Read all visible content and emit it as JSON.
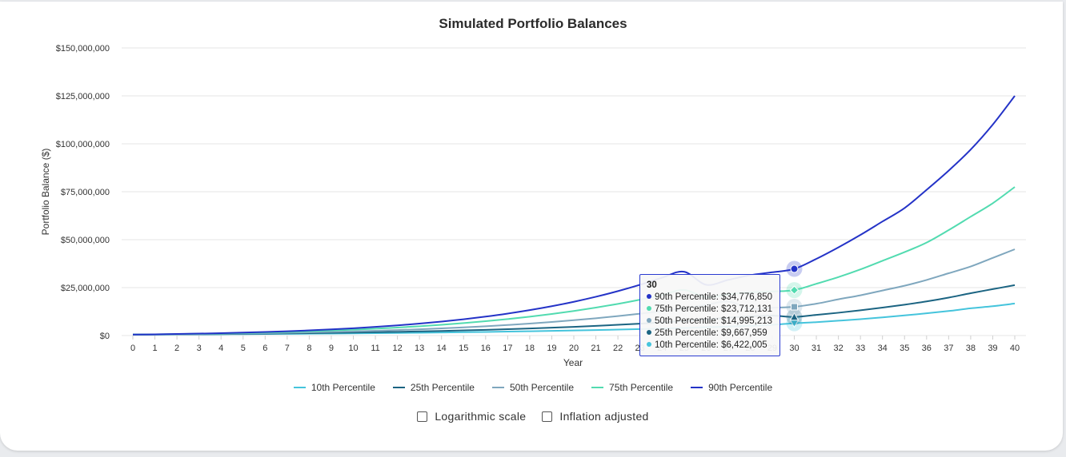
{
  "chart_data": {
    "type": "line",
    "title": "Simulated Portfolio Balances",
    "xlabel": "Year",
    "ylabel": "Portfolio Balance ($)",
    "x": [
      0,
      1,
      2,
      3,
      4,
      5,
      6,
      7,
      8,
      9,
      10,
      11,
      12,
      13,
      14,
      15,
      16,
      17,
      18,
      19,
      20,
      21,
      22,
      23,
      24,
      25,
      26,
      27,
      28,
      29,
      30,
      31,
      32,
      33,
      34,
      35,
      36,
      37,
      38,
      39,
      40
    ],
    "y_ticks": [
      "$0",
      "$25,000,000",
      "$50,000,000",
      "$75,000,000",
      "$100,000,000",
      "$125,000,000",
      "$150,000,000"
    ],
    "ylim": [
      0,
      150000000
    ],
    "grid": true,
    "legend_position": "bottom",
    "series": [
      {
        "name": "10th Percentile",
        "color": "#45c4dc",
        "values": [
          500000,
          520000,
          560000,
          610000,
          670000,
          740000,
          810000,
          890000,
          970000,
          1060000,
          1150000,
          1250000,
          1360000,
          1480000,
          1610000,
          1750000,
          1900000,
          2060000,
          2240000,
          2430000,
          2640000,
          2870000,
          3110000,
          3380000,
          3660000,
          3970000,
          4310000,
          4680000,
          5090000,
          5600000,
          6422005,
          7000000,
          7750000,
          8550000,
          9500000,
          10500000,
          11600000,
          12800000,
          14200000,
          15300000,
          16700000
        ]
      },
      {
        "name": "25th Percentile",
        "color": "#1b6482",
        "values": [
          500000,
          560000,
          630000,
          710000,
          800000,
          900000,
          1010000,
          1130000,
          1260000,
          1410000,
          1570000,
          1750000,
          1950000,
          2170000,
          2420000,
          2690000,
          2990000,
          3320000,
          3690000,
          4100000,
          4550000,
          5050000,
          5600000,
          6210000,
          6880000,
          7620000,
          8440000,
          9340000,
          10000000,
          10400000,
          9667959,
          10800000,
          11900000,
          13200000,
          14600000,
          16100000,
          17800000,
          19800000,
          22100000,
          24200000,
          26300000
        ]
      },
      {
        "name": "50th Percentile",
        "color": "#7fa7be",
        "values": [
          500000,
          590000,
          690000,
          800000,
          930000,
          1080000,
          1250000,
          1440000,
          1660000,
          1910000,
          2190000,
          2510000,
          2870000,
          3280000,
          3740000,
          4260000,
          4850000,
          5510000,
          6250000,
          7080000,
          8000000,
          9020000,
          10150000,
          11400000,
          12780000,
          14300000,
          15970000,
          17790000,
          14000000,
          14500000,
          14995213,
          16600000,
          18900000,
          21000000,
          23500000,
          26000000,
          29000000,
          32500000,
          36000000,
          40500000,
          45000000
        ]
      },
      {
        "name": "75th Percentile",
        "color": "#52dbb0",
        "values": [
          500000,
          620000,
          760000,
          920000,
          1110000,
          1330000,
          1590000,
          1890000,
          2230000,
          2630000,
          3080000,
          3600000,
          4190000,
          4860000,
          5630000,
          6500000,
          7480000,
          8590000,
          9840000,
          11240000,
          12810000,
          14570000,
          16530000,
          18710000,
          21120000,
          23790000,
          20000000,
          21500000,
          22500000,
          23000000,
          23712131,
          27000000,
          30500000,
          34500000,
          39000000,
          43500000,
          48500000,
          55000000,
          62000000,
          69000000,
          77500000
        ]
      },
      {
        "name": "90th Percentile",
        "color": "#2433c7",
        "values": [
          500000,
          650000,
          820000,
          1020000,
          1260000,
          1540000,
          1870000,
          2250000,
          2700000,
          3220000,
          3820000,
          4510000,
          5310000,
          6230000,
          7290000,
          8500000,
          9890000,
          11470000,
          13270000,
          15310000,
          17620000,
          20230000,
          23170000,
          26470000,
          30170000,
          33300000,
          26500000,
          29000000,
          31500000,
          33000000,
          34776850,
          40000000,
          46000000,
          52500000,
          59500000,
          66500000,
          76000000,
          86000000,
          97000000,
          110000000,
          125000000
        ]
      }
    ],
    "highlight_x": 30
  },
  "tooltip": {
    "title": "30",
    "rows": [
      {
        "label": "90th Percentile: $34,776,850",
        "color": "#2433c7"
      },
      {
        "label": "75th Percentile: $23,712,131",
        "color": "#52dbb0"
      },
      {
        "label": "50th Percentile: $14,995,213",
        "color": "#7fa7be"
      },
      {
        "label": "25th Percentile: $9,667,959",
        "color": "#1b6482"
      },
      {
        "label": "10th Percentile: $6,422,005",
        "color": "#45c4dc"
      }
    ]
  },
  "options": {
    "log_scale_label": "Logarithmic scale",
    "inflation_label": "Inflation adjusted"
  }
}
